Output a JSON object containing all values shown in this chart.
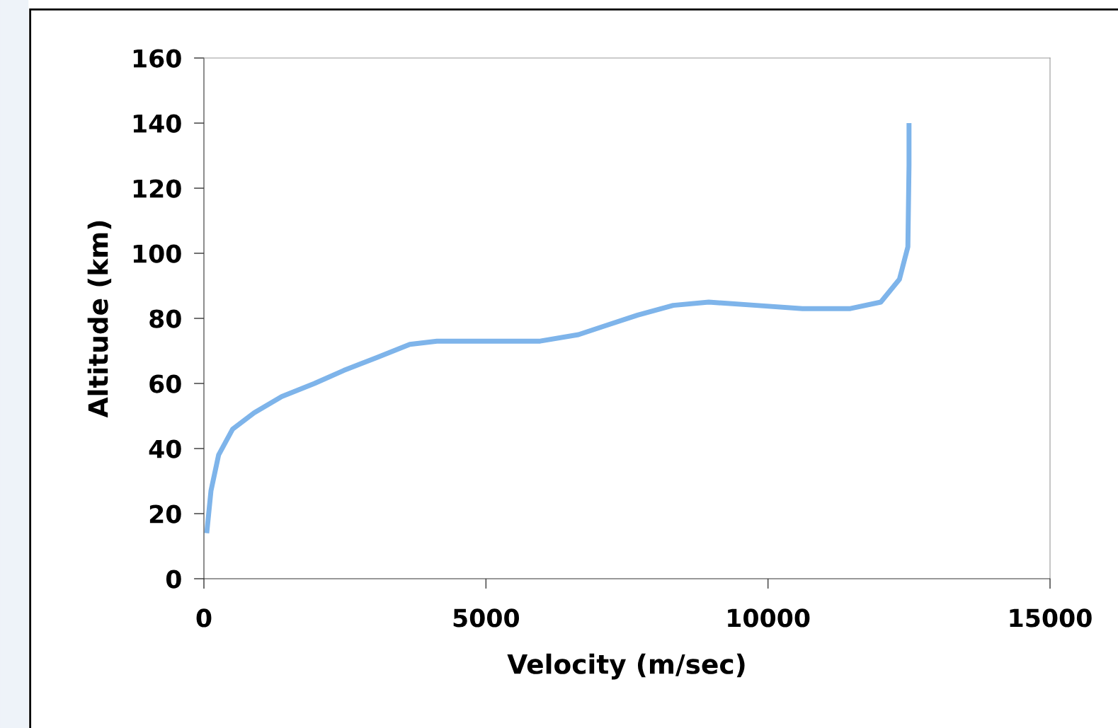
{
  "chart_data": {
    "type": "line",
    "xlabel": "Velocity (m/sec)",
    "ylabel": "Altitude (km)",
    "x": [
      50,
      125,
      260,
      510,
      890,
      1380,
      1960,
      2480,
      3070,
      3650,
      4130,
      4620,
      5240,
      5960,
      6640,
      7160,
      7690,
      8320,
      8950,
      9790,
      10610,
      11460,
      12000,
      12330,
      12480,
      12500,
      12500
    ],
    "series": [
      {
        "color": "#7eb4ea",
        "values": [
          14,
          27,
          38,
          46,
          51,
          56,
          60,
          64,
          68,
          72,
          73,
          73,
          73,
          73,
          75,
          78,
          81,
          84,
          85,
          84,
          83,
          83,
          85,
          92,
          102,
          127,
          140
        ]
      }
    ],
    "xlim": [
      0,
      15000
    ],
    "xticks": [
      0,
      5000,
      10000,
      15000
    ],
    "ylim": [
      0,
      160
    ],
    "yticks": [
      0,
      20,
      40,
      60,
      80,
      100,
      120,
      140,
      160
    ],
    "grid": false,
    "legend": false,
    "marker": "none",
    "line_style": "solid"
  }
}
